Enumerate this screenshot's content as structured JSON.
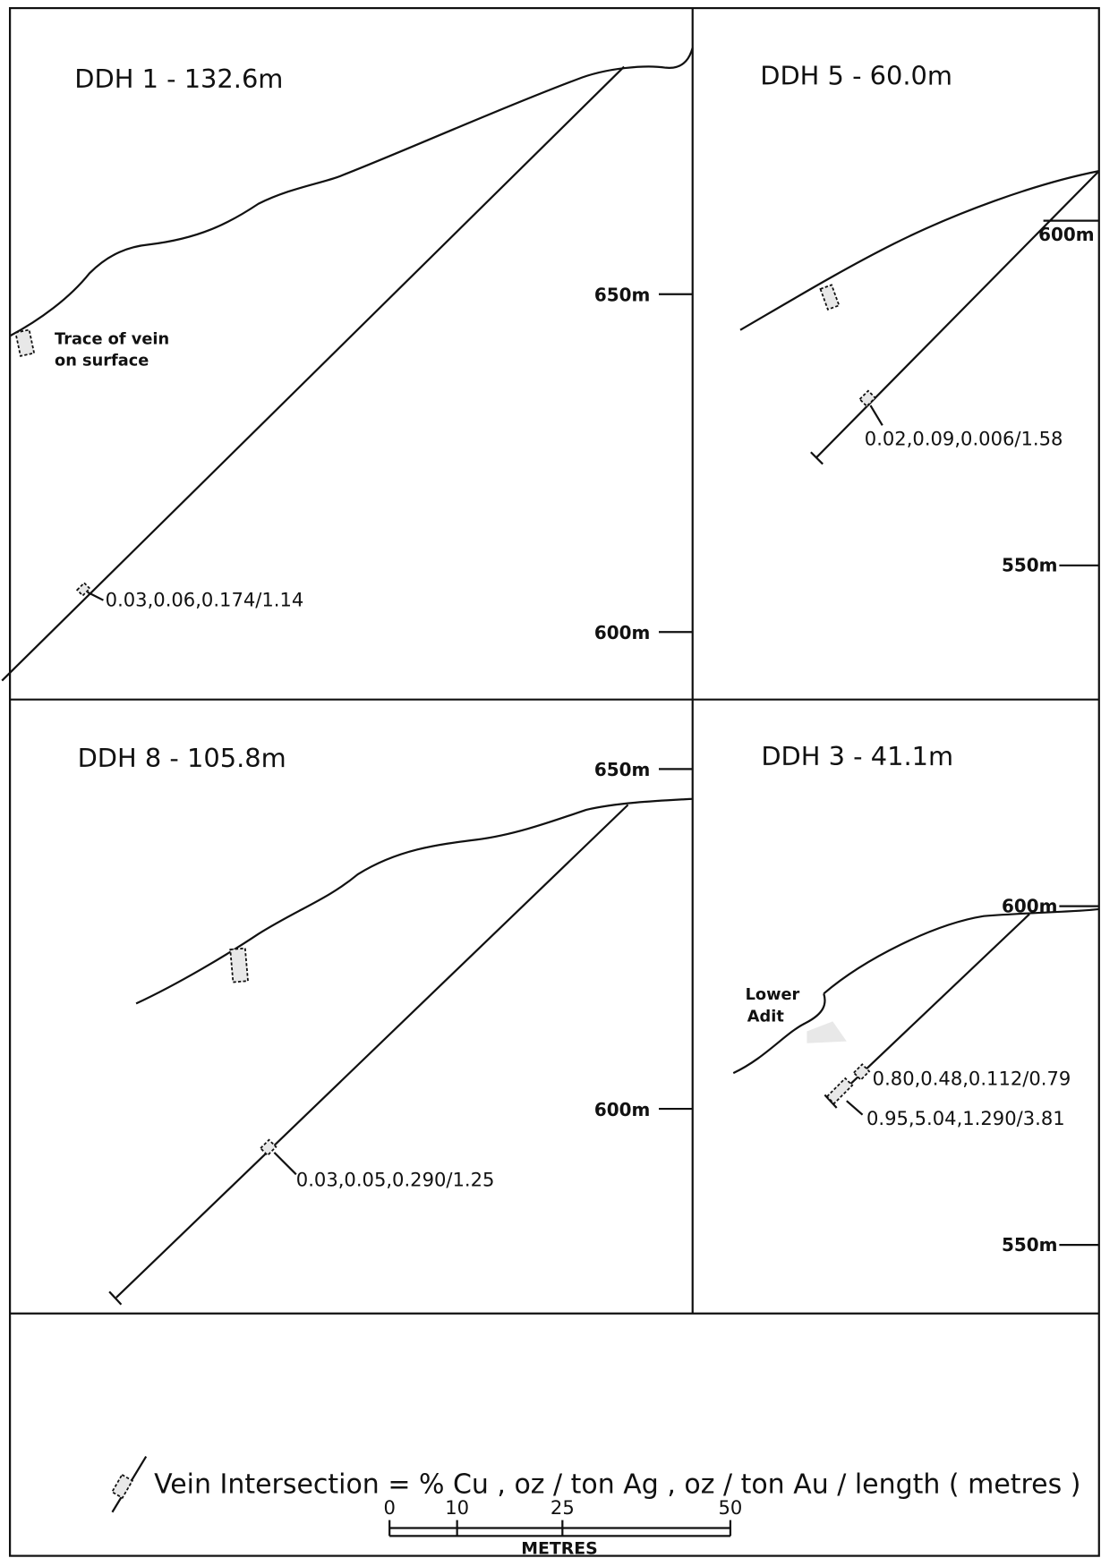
{
  "panels": [
    {
      "title": "DDH 1 - 132.6m",
      "elevations": [
        "650m",
        "600m"
      ],
      "notes": [
        "Trace of vein",
        "on surface"
      ],
      "intersections": [
        "0.03,0.06,0.174/1.14"
      ]
    },
    {
      "title": "DDH 5 - 60.0m",
      "elevations": [
        "600m",
        "550m"
      ],
      "intersections": [
        "0.02,0.09,0.006/1.58"
      ]
    },
    {
      "title": "DDH 8 - 105.8m",
      "elevations": [
        "650m",
        "600m"
      ],
      "intersections": [
        "0.03,0.05,0.290/1.25"
      ]
    },
    {
      "title": "DDH 3 - 41.1m",
      "elevations": [
        "600m",
        "550m"
      ],
      "notes": [
        "Lower",
        "Adit"
      ],
      "intersections": [
        "0.80,0.48,0.112/0.79",
        "0.95,5.04,1.290/3.81"
      ]
    }
  ],
  "legend": {
    "text": "Vein Intersection = % Cu , oz / ton Ag , oz / ton Au / length ( metres )"
  },
  "scale": {
    "ticks": [
      "0",
      "10",
      "25",
      "50"
    ],
    "unit": "METRES"
  }
}
